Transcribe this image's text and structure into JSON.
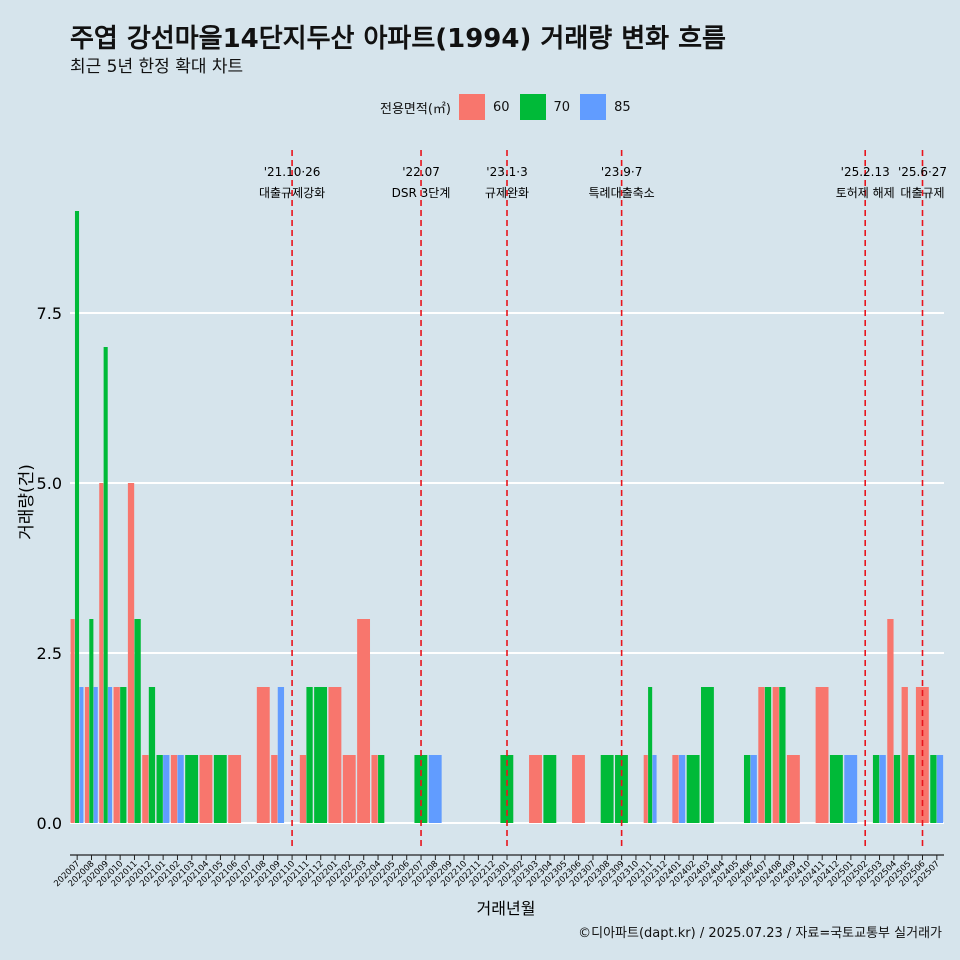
{
  "title": "주엽 강선마을14단지두산 아파트(1994) 거래량 변화 흐름",
  "subtitle": "최근 5년 한정 확대 차트",
  "caption": "©디아파트(dapt.kr) / 2025.07.23 / 자료=국토교통부 실거래가",
  "legend": {
    "title": "전용면적(㎡)",
    "items": [
      {
        "label": "60",
        "color": "#f8766d"
      },
      {
        "label": "70",
        "color": "#00ba38"
      },
      {
        "label": "85",
        "color": "#619cff"
      }
    ]
  },
  "chart_data": {
    "type": "bar",
    "xlabel": "거래년월",
    "ylabel": "거래량(건)",
    "ylim": [
      0,
      9
    ],
    "yticks": [
      "0.0",
      "2.5",
      "5.0",
      "7.5"
    ],
    "grid": true,
    "legend_position": "top",
    "categories": [
      "202007",
      "202008",
      "202009",
      "202010",
      "202011",
      "202012",
      "202101",
      "202102",
      "202103",
      "202104",
      "202105",
      "202106",
      "202107",
      "202108",
      "202109",
      "202110",
      "202111",
      "202112",
      "202201",
      "202202",
      "202203",
      "202204",
      "202205",
      "202206",
      "202207",
      "202208",
      "202209",
      "202210",
      "202211",
      "202212",
      "202301",
      "202302",
      "202303",
      "202304",
      "202305",
      "202306",
      "202307",
      "202308",
      "202309",
      "202310",
      "202311",
      "202312",
      "202401",
      "202402",
      "202403",
      "202404",
      "202405",
      "202406",
      "202407",
      "202408",
      "202409",
      "202410",
      "202411",
      "202412",
      "202501",
      "202502",
      "202503",
      "202504",
      "202505",
      "202506",
      "202507"
    ],
    "series": [
      {
        "name": "60",
        "color": "#f8766d",
        "values": [
          3,
          2,
          5,
          2,
          5,
          1,
          0,
          1,
          0,
          1,
          0,
          1,
          0,
          2,
          1,
          0,
          1,
          0,
          2,
          1,
          3,
          1,
          0,
          0,
          0,
          0,
          0,
          0,
          0,
          0,
          0,
          0,
          1,
          0,
          0,
          1,
          0,
          0,
          0,
          0,
          1,
          0,
          1,
          0,
          0,
          0,
          0,
          0,
          2,
          2,
          1,
          0,
          2,
          0,
          0,
          0,
          0,
          3,
          2,
          2,
          0
        ]
      },
      {
        "name": "70",
        "color": "#00ba38",
        "values": [
          9,
          3,
          7,
          2,
          3,
          2,
          1,
          0,
          1,
          0,
          1,
          0,
          0,
          0,
          0,
          0,
          2,
          2,
          0,
          0,
          0,
          1,
          0,
          0,
          1,
          0,
          0,
          0,
          0,
          0,
          1,
          0,
          0,
          1,
          0,
          0,
          0,
          1,
          1,
          0,
          2,
          0,
          0,
          1,
          2,
          0,
          0,
          1,
          2,
          2,
          0,
          0,
          0,
          1,
          0,
          0,
          1,
          1,
          1,
          0,
          1
        ]
      },
      {
        "name": "85",
        "color": "#619cff",
        "values": [
          2,
          2,
          2,
          0,
          0,
          0,
          1,
          1,
          0,
          0,
          0,
          0,
          0,
          0,
          2,
          0,
          0,
          0,
          0,
          0,
          0,
          0,
          0,
          0,
          0,
          1,
          0,
          0,
          0,
          0,
          0,
          0,
          0,
          0,
          0,
          0,
          0,
          0,
          0,
          0,
          1,
          0,
          1,
          0,
          0,
          0,
          0,
          1,
          0,
          0,
          0,
          0,
          0,
          0,
          1,
          0,
          1,
          0,
          0,
          0,
          1
        ]
      }
    ],
    "annotations": [
      {
        "date": "'21.10·26",
        "label": "대출규제강화",
        "month": "202110"
      },
      {
        "date": "'22.07",
        "label": "DSR 3단계",
        "month": "202207"
      },
      {
        "date": "'23.1·3",
        "label": "규제완화",
        "month": "202301"
      },
      {
        "date": "'23.9·7",
        "label": "특례대출축소",
        "month": "202309"
      },
      {
        "date": "'25.2.13",
        "label": "토허제 해제",
        "month": "202502"
      },
      {
        "date": "'25.6·27",
        "label": "대출규제",
        "month": "202506"
      }
    ]
  }
}
